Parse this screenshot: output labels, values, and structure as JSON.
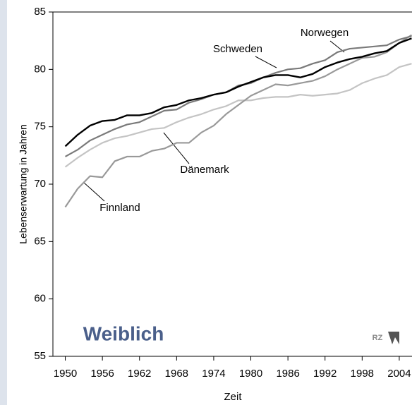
{
  "chart_data": {
    "type": "line",
    "subtitle": "Weiblich",
    "logo": "RZ",
    "x_label": "Zeit",
    "y_label": "Lebenserwartung in Jahren",
    "x": [
      1950,
      1952,
      1954,
      1956,
      1958,
      1960,
      1962,
      1964,
      1966,
      1968,
      1970,
      1972,
      1974,
      1976,
      1978,
      1980,
      1982,
      1984,
      1986,
      1988,
      1990,
      1992,
      1994,
      1996,
      1998,
      2000,
      2002,
      2004,
      2006
    ],
    "series": [
      {
        "name": "Dänemark",
        "color": "#c4c4c4",
        "values": [
          71.5,
          72.3,
          73.0,
          73.6,
          74.0,
          74.2,
          74.5,
          74.8,
          74.9,
          75.4,
          75.8,
          76.1,
          76.5,
          76.8,
          77.3,
          77.3,
          77.5,
          77.6,
          77.6,
          77.8,
          77.7,
          77.8,
          77.9,
          78.2,
          78.8,
          79.2,
          79.5,
          80.2,
          80.5
        ]
      },
      {
        "name": "Finnland",
        "color": "#999999",
        "values": [
          68.0,
          69.6,
          70.7,
          70.6,
          72.0,
          72.4,
          72.4,
          72.9,
          73.1,
          73.6,
          73.6,
          74.5,
          75.1,
          76.1,
          76.9,
          77.7,
          78.2,
          78.7,
          78.6,
          78.8,
          79.0,
          79.4,
          80.0,
          80.5,
          81.0,
          81.1,
          81.5,
          82.3,
          83.0
        ]
      },
      {
        "name": "Schweden",
        "color": "#7a7a7a",
        "values": [
          72.4,
          73.0,
          73.8,
          74.3,
          74.8,
          75.2,
          75.4,
          75.9,
          76.4,
          76.5,
          77.1,
          77.4,
          77.8,
          78.0,
          78.6,
          78.8,
          79.3,
          79.7,
          80.0,
          80.1,
          80.5,
          80.8,
          81.5,
          81.8,
          81.9,
          82.0,
          82.1,
          82.6,
          82.9
        ]
      },
      {
        "name": "Norwegen",
        "color": "#000000",
        "values": [
          73.3,
          74.3,
          75.1,
          75.5,
          75.6,
          76.0,
          76.0,
          76.2,
          76.7,
          76.9,
          77.3,
          77.5,
          77.8,
          78.0,
          78.5,
          78.9,
          79.3,
          79.5,
          79.5,
          79.3,
          79.6,
          80.2,
          80.6,
          80.9,
          81.1,
          81.4,
          81.6,
          82.3,
          82.7
        ]
      }
    ],
    "xlim": [
      1948,
      2008
    ],
    "xticks": [
      1950,
      1956,
      1962,
      1968,
      1974,
      1980,
      1986,
      1992,
      1998,
      2004
    ],
    "ylim": [
      55,
      85
    ],
    "yticks": [
      55,
      60,
      65,
      70,
      75,
      80,
      85
    ]
  }
}
